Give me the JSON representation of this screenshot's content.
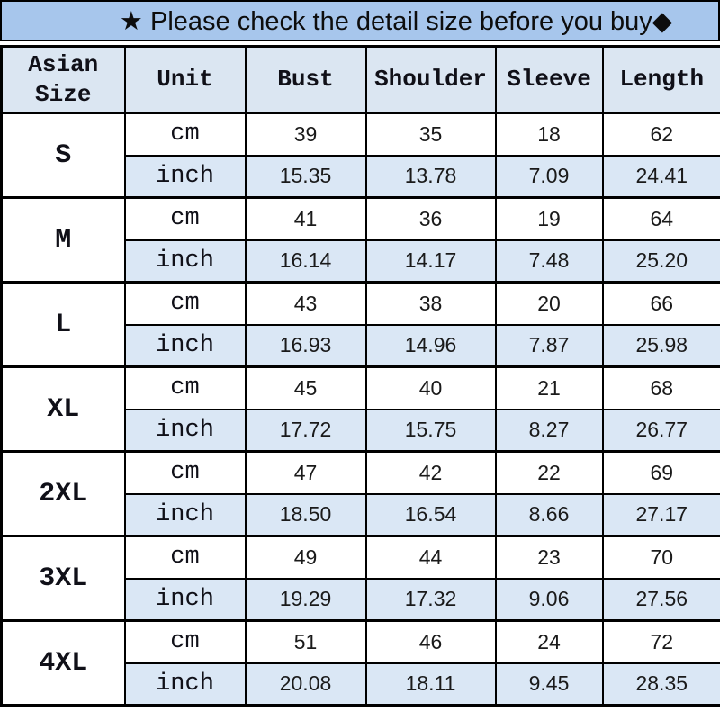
{
  "banner": {
    "text": "★ Please check the detail size before you buy◆",
    "bg_color": "#a7c6ec"
  },
  "colors": {
    "banner_blue": "#a7c6ec",
    "header_blue": "#dbe6f2",
    "inch_row_blue": "#dae7f5",
    "border_black": "#000000"
  },
  "table": {
    "headers": [
      "Asian Size",
      "Unit",
      "Bust",
      "Shoulder",
      "Sleeve",
      "Length"
    ],
    "unit_cm": "cm",
    "unit_inch": "inch",
    "sizes": [
      {
        "label": "S",
        "cm": [
          "39",
          "35",
          "18",
          "62"
        ],
        "inch": [
          "15.35",
          "13.78",
          "7.09",
          "24.41"
        ]
      },
      {
        "label": "M",
        "cm": [
          "41",
          "36",
          "19",
          "64"
        ],
        "inch": [
          "16.14",
          "14.17",
          "7.48",
          "25.20"
        ]
      },
      {
        "label": "L",
        "cm": [
          "43",
          "38",
          "20",
          "66"
        ],
        "inch": [
          "16.93",
          "14.96",
          "7.87",
          "25.98"
        ]
      },
      {
        "label": "XL",
        "cm": [
          "45",
          "40",
          "21",
          "68"
        ],
        "inch": [
          "17.72",
          "15.75",
          "8.27",
          "26.77"
        ]
      },
      {
        "label": "2XL",
        "cm": [
          "47",
          "42",
          "22",
          "69"
        ],
        "inch": [
          "18.50",
          "16.54",
          "8.66",
          "27.17"
        ]
      },
      {
        "label": "3XL",
        "cm": [
          "49",
          "44",
          "23",
          "70"
        ],
        "inch": [
          "19.29",
          "17.32",
          "9.06",
          "27.56"
        ]
      },
      {
        "label": "4XL",
        "cm": [
          "51",
          "46",
          "24",
          "72"
        ],
        "inch": [
          "20.08",
          "18.11",
          "9.45",
          "28.35"
        ]
      }
    ]
  },
  "chart_data": {
    "type": "table",
    "title": "★ Please check the detail size before you buy◆",
    "columns": [
      "Asian Size",
      "Unit",
      "Bust",
      "Shoulder",
      "Sleeve",
      "Length"
    ],
    "rows": [
      [
        "S",
        "cm",
        "39",
        "35",
        "18",
        "62"
      ],
      [
        "S",
        "inch",
        "15.35",
        "13.78",
        "7.09",
        "24.41"
      ],
      [
        "M",
        "cm",
        "41",
        "36",
        "19",
        "64"
      ],
      [
        "M",
        "inch",
        "16.14",
        "14.17",
        "7.48",
        "25.20"
      ],
      [
        "L",
        "cm",
        "43",
        "38",
        "20",
        "66"
      ],
      [
        "L",
        "inch",
        "16.93",
        "14.96",
        "7.87",
        "25.98"
      ],
      [
        "XL",
        "cm",
        "45",
        "40",
        "21",
        "68"
      ],
      [
        "XL",
        "inch",
        "17.72",
        "15.75",
        "8.27",
        "26.77"
      ],
      [
        "2XL",
        "cm",
        "47",
        "42",
        "22",
        "69"
      ],
      [
        "2XL",
        "inch",
        "18.50",
        "16.54",
        "8.66",
        "27.17"
      ],
      [
        "3XL",
        "cm",
        "49",
        "44",
        "23",
        "70"
      ],
      [
        "3XL",
        "inch",
        "19.29",
        "17.32",
        "9.06",
        "27.56"
      ],
      [
        "4XL",
        "cm",
        "51",
        "46",
        "24",
        "72"
      ],
      [
        "4XL",
        "inch",
        "20.08",
        "18.11",
        "9.45",
        "28.35"
      ]
    ],
    "layout": {
      "grid": true,
      "zebra_highlight": "inch rows light blue",
      "header_fill": "#dbe6f2"
    }
  }
}
